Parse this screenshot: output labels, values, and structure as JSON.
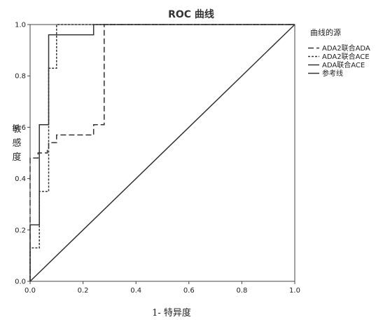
{
  "chart_data": {
    "type": "line",
    "title": "ROC 曲线",
    "xlabel": "1- 特异度",
    "ylabel": "敏感度",
    "xlim": [
      0,
      1
    ],
    "ylim": [
      0,
      1
    ],
    "xticks": [
      "0.0",
      "0.2",
      "0.4",
      "0.6",
      "0.8",
      "1.0"
    ],
    "yticks": [
      "0.0",
      "0.2",
      "0.4",
      "0.6",
      "0.8",
      "1.0"
    ],
    "grid": false,
    "legend": {
      "title": "曲线的源",
      "position": "right"
    },
    "series": [
      {
        "name": "ADA2联合ADA",
        "style": "dashed",
        "color": "#333333",
        "points": [
          [
            0,
            0
          ],
          [
            0,
            0.48
          ],
          [
            0.03,
            0.48
          ],
          [
            0.03,
            0.5
          ],
          [
            0.065,
            0.5
          ],
          [
            0.065,
            0.52
          ],
          [
            0.07,
            0.52
          ],
          [
            0.07,
            0.54
          ],
          [
            0.1,
            0.54
          ],
          [
            0.1,
            0.57
          ],
          [
            0.24,
            0.57
          ],
          [
            0.24,
            0.61
          ],
          [
            0.28,
            0.61
          ],
          [
            0.28,
            1.0
          ],
          [
            1.0,
            1.0
          ]
        ]
      },
      {
        "name": "ADA2联合ACE",
        "style": "dotted",
        "color": "#333333",
        "points": [
          [
            0,
            0
          ],
          [
            0,
            0.13
          ],
          [
            0.035,
            0.13
          ],
          [
            0.035,
            0.35
          ],
          [
            0.07,
            0.35
          ],
          [
            0.07,
            0.83
          ],
          [
            0.1,
            0.83
          ],
          [
            0.1,
            1.0
          ],
          [
            1.0,
            1.0
          ]
        ]
      },
      {
        "name": "ADA联合ACE",
        "style": "solid",
        "color": "#333333",
        "points": [
          [
            0,
            0
          ],
          [
            0,
            0.22
          ],
          [
            0.035,
            0.22
          ],
          [
            0.035,
            0.61
          ],
          [
            0.07,
            0.61
          ],
          [
            0.07,
            0.96
          ],
          [
            0.24,
            0.96
          ],
          [
            0.24,
            1.0
          ],
          [
            1.0,
            1.0
          ]
        ]
      },
      {
        "name": "参考线",
        "style": "solid",
        "color": "#333333",
        "points": [
          [
            0,
            0
          ],
          [
            1,
            1
          ]
        ]
      }
    ]
  }
}
